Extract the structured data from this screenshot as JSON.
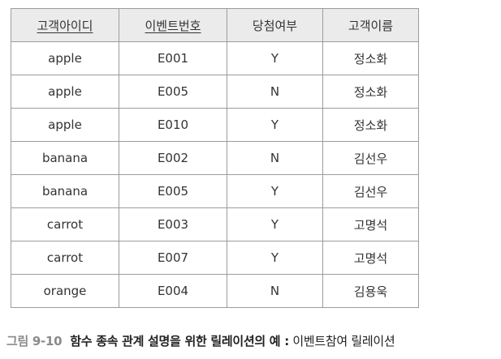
{
  "table": {
    "headers": [
      {
        "label": "고객아이디",
        "primary_key": true
      },
      {
        "label": "이벤트번호",
        "primary_key": true
      },
      {
        "label": "당첨여부",
        "primary_key": false
      },
      {
        "label": "고객이름",
        "primary_key": false
      }
    ],
    "rows": [
      [
        "apple",
        "E001",
        "Y",
        "정소화"
      ],
      [
        "apple",
        "E005",
        "N",
        "정소화"
      ],
      [
        "apple",
        "E010",
        "Y",
        "정소화"
      ],
      [
        "banana",
        "E002",
        "N",
        "김선우"
      ],
      [
        "banana",
        "E005",
        "Y",
        "김선우"
      ],
      [
        "carrot",
        "E003",
        "Y",
        "고명석"
      ],
      [
        "carrot",
        "E007",
        "Y",
        "고명석"
      ],
      [
        "orange",
        "E004",
        "N",
        "김용욱"
      ]
    ]
  },
  "caption": {
    "figure_number": "그림 9-10",
    "description": "함수 종속 관계 설명을 위한 릴레이션의 예 :",
    "relation_name": " 이벤트참여 릴레이션"
  }
}
